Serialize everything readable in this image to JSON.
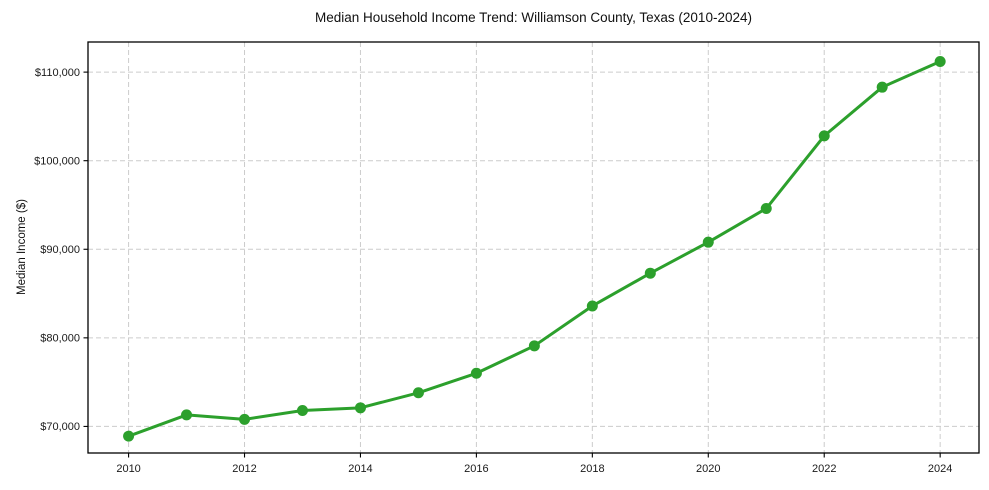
{
  "chart_data": {
    "type": "line",
    "title": "Median Household Income Trend: Williamson County, Texas (2010-2024)",
    "xlabel": "",
    "ylabel": "Median Income ($)",
    "x": [
      2010,
      2011,
      2012,
      2013,
      2014,
      2015,
      2016,
      2017,
      2018,
      2019,
      2020,
      2021,
      2022,
      2023,
      2024
    ],
    "values": [
      68900,
      71300,
      70800,
      71800,
      72100,
      73800,
      76000,
      79100,
      83600,
      87300,
      90800,
      94600,
      102800,
      108300,
      111200
    ],
    "xlim": [
      2009.3,
      2024.67
    ],
    "ylim": [
      67000,
      113400
    ],
    "xticks": [
      2010,
      2012,
      2014,
      2016,
      2018,
      2020,
      2022,
      2024
    ],
    "xtick_labels": [
      "2010",
      "2012",
      "2014",
      "2016",
      "2018",
      "2020",
      "2022",
      "2024"
    ],
    "yticks": [
      70000,
      80000,
      90000,
      100000,
      110000
    ],
    "ytick_labels": [
      "$70,000",
      "$80,000",
      "$90,000",
      "$100,000",
      "$110,000"
    ],
    "grid": true,
    "grid_style": "dashed",
    "grid_color": "#cccccc",
    "axis_color": "#000000",
    "line_color": "#2ca02c",
    "marker": "circle",
    "legend": "none",
    "background": "#ffffff"
  }
}
